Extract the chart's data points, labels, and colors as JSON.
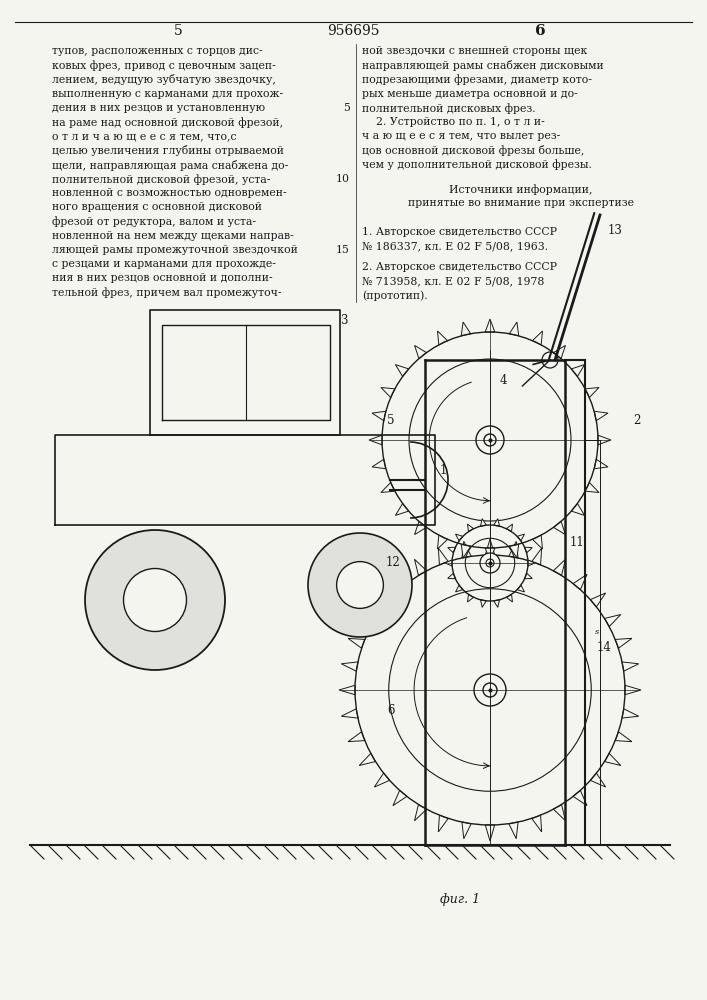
{
  "page_number_left": "5",
  "patent_number": "956695",
  "page_number_right": "6",
  "left_col_lines": [
    "тупов, расположенных с торцов дис-",
    "ковых фрез, привод с цевочным зацеп-",
    "лением, ведущую зубчатую звездочку,",
    "выполненную с карманами для прохож-",
    "дения в них резцов и установленную",
    "на раме над основной дисковой фрезой,",
    "о т л и ч а ю щ е е с я тем, что,с",
    "целью увеличения глубины отрываемой",
    "щели, направляющая рама снабжена до-",
    "полнительной дисковой фрезой, уста-",
    "новленной с возможностью одновремен-",
    "ного вращения с основной дисковой",
    "фрезой от редуктора, валом и уста-",
    "новленной на нем между щеками направ-",
    "ляющей рамы промежуточной звездочкой",
    "с резцами и карманами для прохожде-",
    "ния в них резцов основной и дополни-",
    "тельной фрез, причем вал промежуточ-"
  ],
  "right_col_lines": [
    "ной звездочки с внешней стороны щек",
    "направляющей рамы снабжен дисковыми",
    "подрезающими фрезами, диаметр кото-",
    "рых меньше диаметра основной и до-",
    "полнительной дисковых фрез.",
    "    2. Устройство по п. 1, о т л и-",
    "ч а ю щ е е с я тем, что вылет рез-",
    "цов основной дисковой фрезы больше,",
    "чем у дополнительной дисковой фрезы."
  ],
  "sources_title": "Источники информации,",
  "sources_subtitle": "принятые во внимание при экспертизе",
  "source1_lines": [
    "1. Авторское свидетельство СССР",
    "№ 186337, кл. Е 02 F 5/08, 1963."
  ],
  "source2_lines": [
    "2. Авторское свидетельство СССР",
    "№ 713958, кл. Е 02 F 5/08, 1978",
    "(прототип)."
  ],
  "fig_caption": "фиг. 1",
  "line_num_5_row": 5,
  "line_num_10_row": 10,
  "line_num_15_row": 15,
  "background_color": "#f5f5f0",
  "text_color": "#1a1a1a",
  "line_color": "#1a1a1a"
}
